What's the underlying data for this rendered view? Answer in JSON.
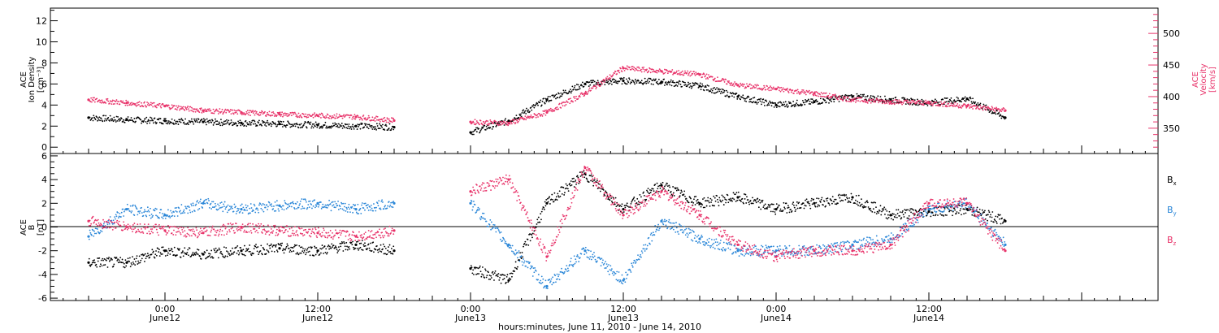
{
  "chart_data": [
    {
      "type": "scatter",
      "panel": "top",
      "ylabel_left": [
        "ACE",
        "Ion Density",
        "[cm⁻³]"
      ],
      "ylabel_right": [
        "ACE",
        "Velocity",
        "[km/s]"
      ],
      "ylim_left": [
        -0.6,
        13.2
      ],
      "ylim_right": [
        310,
        540
      ],
      "yticks_left": [
        0,
        2,
        4,
        6,
        8,
        10,
        12
      ],
      "yticks_right": [
        350,
        400,
        450,
        500
      ],
      "series": [
        {
          "color": "#000000",
          "axis": "left",
          "x": [
            -6,
            -3,
            0,
            3,
            6,
            9,
            12,
            15,
            18,
            21,
            24,
            27,
            30,
            33,
            36,
            39,
            42,
            45,
            48,
            51,
            54,
            57,
            60,
            63,
            66
          ],
          "y": [
            2.8,
            2.6,
            2.5,
            2.4,
            2.3,
            2.2,
            2.1,
            2.0,
            1.9,
            null,
            1.4,
            2.5,
            4.5,
            6.0,
            6.3,
            6.2,
            5.8,
            4.8,
            4.0,
            4.3,
            4.8,
            4.5,
            4.2,
            4.6,
            2.8
          ]
        },
        {
          "color": "#e8336a",
          "axis": "right",
          "x": [
            -6,
            -3,
            0,
            3,
            6,
            9,
            12,
            15,
            18,
            21,
            24,
            27,
            30,
            33,
            36,
            39,
            42,
            45,
            48,
            51,
            54,
            57,
            60,
            63,
            66
          ],
          "y": [
            395,
            390,
            385,
            378,
            375,
            372,
            370,
            368,
            362,
            null,
            360,
            358,
            375,
            405,
            445,
            440,
            435,
            418,
            412,
            405,
            395,
            392,
            390,
            385,
            378
          ]
        }
      ]
    },
    {
      "type": "scatter",
      "panel": "bottom",
      "ylabel": [
        "ACE",
        "B",
        "[nT]"
      ],
      "ylim": [
        -6.2,
        6.2
      ],
      "yticks": [
        -6,
        -4,
        -2,
        0,
        2,
        4,
        6
      ],
      "legend": [
        "Bx",
        "By",
        "Bz"
      ],
      "series": [
        {
          "name": "Bx",
          "color": "#000000",
          "x": [
            -6,
            -3,
            0,
            3,
            6,
            9,
            12,
            15,
            18,
            21,
            24,
            27,
            30,
            33,
            36,
            39,
            42,
            45,
            48,
            51,
            54,
            57,
            60,
            63,
            66
          ],
          "y": [
            -3.0,
            -3.0,
            -2.0,
            -2.3,
            -2.0,
            -1.8,
            -2.0,
            -1.5,
            -2.0,
            null,
            -3.5,
            -4.5,
            2.0,
            4.5,
            1.5,
            3.5,
            2.0,
            2.5,
            1.5,
            2.0,
            2.5,
            1.0,
            1.3,
            1.5,
            0.5
          ]
        },
        {
          "name": "By",
          "color": "#2b87d8",
          "x": [
            -6,
            -3,
            0,
            3,
            6,
            9,
            12,
            15,
            18,
            21,
            24,
            27,
            30,
            33,
            36,
            39,
            42,
            45,
            48,
            51,
            54,
            57,
            60,
            63,
            66
          ],
          "y": [
            -0.8,
            1.5,
            1.0,
            2.0,
            1.5,
            1.8,
            2.0,
            1.5,
            2.0,
            null,
            2.0,
            -1.5,
            -5.0,
            -2.0,
            -4.5,
            0.5,
            -1.0,
            -2.0,
            -2.0,
            -2.0,
            -1.5,
            -1.0,
            1.5,
            2.0,
            -1.5
          ]
        },
        {
          "name": "Bz",
          "color": "#e8336a",
          "x": [
            -6,
            -3,
            0,
            3,
            6,
            9,
            12,
            15,
            18,
            21,
            24,
            27,
            30,
            33,
            36,
            39,
            42,
            45,
            48,
            51,
            54,
            57,
            60,
            63,
            66
          ],
          "y": [
            0.5,
            0.0,
            -0.3,
            -0.5,
            0.0,
            -0.3,
            -0.5,
            -0.8,
            -0.3,
            null,
            3.0,
            4.0,
            -2.5,
            5.0,
            1.0,
            3.0,
            1.0,
            -1.5,
            -2.5,
            -2.0,
            -2.0,
            -1.5,
            2.0,
            2.0,
            -2.0
          ]
        }
      ]
    }
  ],
  "x_axis": {
    "xlim": [
      -9,
      78
    ],
    "ticks": [
      {
        "x": 0,
        "time": "0:00",
        "date": "June12"
      },
      {
        "x": 12,
        "time": "12:00",
        "date": "June12"
      },
      {
        "x": 24,
        "time": "0:00",
        "date": "June13"
      },
      {
        "x": 36,
        "time": "12:00",
        "date": "June13"
      },
      {
        "x": 48,
        "time": "0:00",
        "date": "June14"
      },
      {
        "x": 60,
        "time": "12:00",
        "date": "June14"
      }
    ],
    "xlabel": "hours:minutes, June 11, 2010 - June 14, 2010"
  },
  "legend_labels": {
    "bx_main": "B",
    "bx_sub": "x",
    "by_main": "B",
    "by_sub": "y",
    "bz_main": "B",
    "bz_sub": "z"
  },
  "colors": {
    "black": "#000000",
    "pink": "#e8336a",
    "blue": "#2b87d8"
  }
}
